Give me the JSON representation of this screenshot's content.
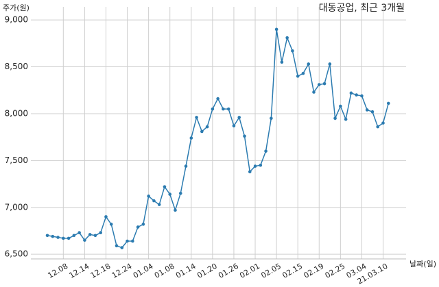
{
  "chart_data": {
    "type": "line",
    "title": "대동공업, 최근 3개월",
    "y_label": "주가(원)",
    "x_label": "날짜(일)",
    "categories": [
      null,
      null,
      null,
      "12.08",
      null,
      null,
      null,
      "12.14",
      null,
      null,
      null,
      "12.18",
      null,
      null,
      null,
      "12.24",
      null,
      null,
      null,
      "01.04",
      null,
      null,
      null,
      "01.08",
      null,
      null,
      null,
      "01.14",
      null,
      null,
      null,
      "01.20",
      null,
      null,
      null,
      "01.26",
      null,
      null,
      null,
      "02.01",
      null,
      null,
      null,
      "02.05",
      null,
      null,
      null,
      "02.15",
      null,
      null,
      null,
      "02.19",
      null,
      null,
      null,
      "02.25",
      null,
      null,
      null,
      "03.04",
      null,
      null,
      null,
      "21.03.10",
      null
    ],
    "series": [
      {
        "name": "주가",
        "color": "#2b7bb0",
        "values": [
          6700,
          6690,
          6680,
          6670,
          6670,
          6700,
          6730,
          6650,
          6710,
          6700,
          6730,
          6900,
          6820,
          6590,
          6570,
          6640,
          6640,
          6790,
          6820,
          7120,
          7070,
          7030,
          7220,
          7140,
          6970,
          7150,
          7440,
          7740,
          7960,
          7810,
          7860,
          8050,
          8160,
          8050,
          8050,
          7870,
          7960,
          7760,
          7380,
          7440,
          7450,
          7600,
          7950,
          8900,
          8550,
          8810,
          8670,
          8400,
          8430,
          8530,
          8230,
          8310,
          8320,
          8530,
          7950,
          8080,
          7940,
          8220,
          8200,
          8190,
          8040,
          8020,
          7860,
          7900,
          8110
        ]
      }
    ],
    "ylim": [
      6450,
      9140
    ],
    "yticks": [
      {
        "value": 6500,
        "label": "6,500"
      },
      {
        "value": 7000,
        "label": "7,000"
      },
      {
        "value": 7500,
        "label": "7,500"
      },
      {
        "value": 8000,
        "label": "8,000"
      },
      {
        "value": 8500,
        "label": "8,500"
      },
      {
        "value": 9000,
        "label": "9,000"
      }
    ],
    "grid": true
  }
}
